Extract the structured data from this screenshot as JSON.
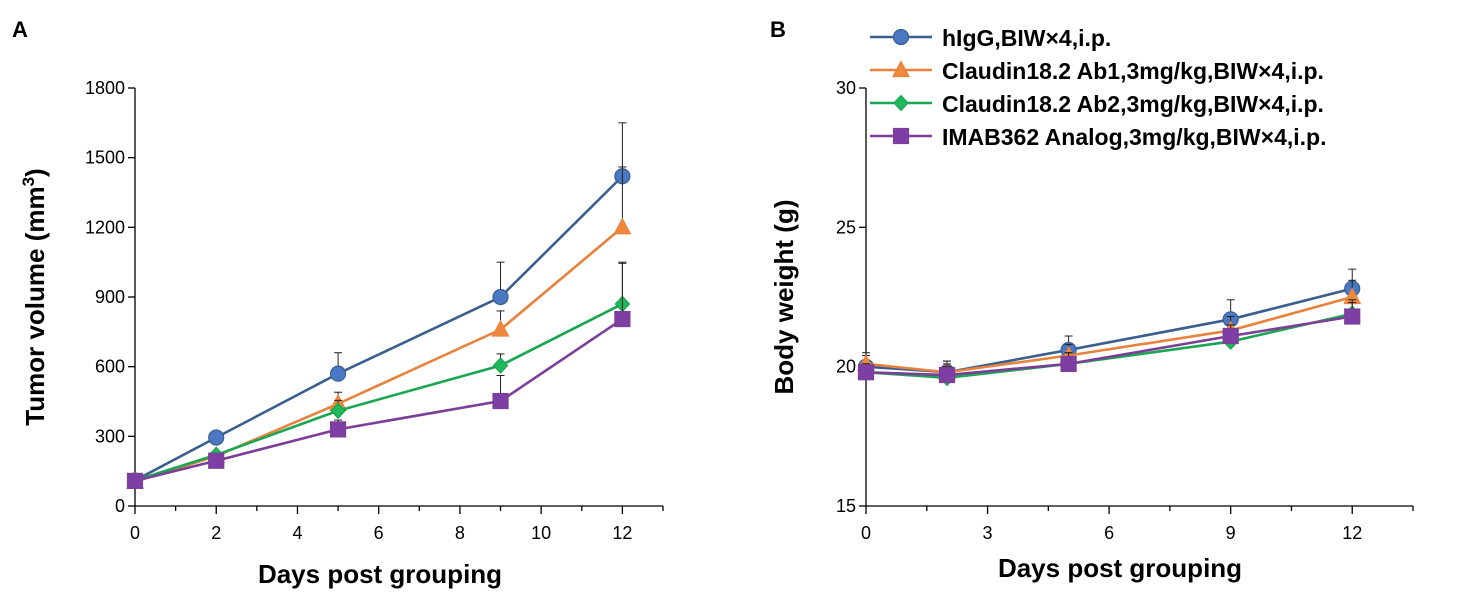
{
  "panels": [
    {
      "label": "A"
    },
    {
      "label": "B"
    }
  ],
  "legend": [
    {
      "name": "hIgG,BIW×4,i.p.",
      "color": "#3a5f8f",
      "fill": "#4a78c2",
      "marker": "circle"
    },
    {
      "name": "Claudin18.2 Ab1,3mg/kg,BIW×4,i.p.",
      "color": "#e8823c",
      "fill": "#ef8a3c",
      "marker": "triangle"
    },
    {
      "name": "Claudin18.2 Ab2,3mg/kg,BIW×4,i.p.",
      "color": "#1aa650",
      "fill": "#1fb85a",
      "marker": "diamond"
    },
    {
      "name": "IMAB362 Analog,3mg/kg,BIW×4,i.p.",
      "color": "#7b3f98",
      "fill": "#7d3fa3",
      "marker": "square"
    }
  ],
  "chart_data": [
    {
      "type": "line",
      "panel": "A",
      "xlabel": "Days post grouping",
      "ylabel": "Tumor volume (mm",
      "ylabel_sup": "3",
      "ylabel_close": ")",
      "xlim": [
        0,
        13
      ],
      "ylim": [
        0,
        1800
      ],
      "xticks": [
        0,
        2,
        4,
        6,
        8,
        10,
        12
      ],
      "xminor": [
        1,
        3,
        5,
        7,
        9,
        11,
        13
      ],
      "yticks": [
        0,
        300,
        600,
        900,
        1200,
        1500,
        1800
      ],
      "x": [
        0,
        2,
        5,
        9,
        12
      ],
      "series": [
        {
          "name": "hIgG,BIW×4,i.p.",
          "values": [
            110,
            295,
            570,
            900,
            1420
          ],
          "errors": [
            25,
            20,
            90,
            150,
            230
          ]
        },
        {
          "name": "Claudin18.2 Ab1,3mg/kg,BIW×4,i.p.",
          "values": [
            105,
            215,
            440,
            760,
            1200
          ],
          "errors": [
            20,
            15,
            50,
            80,
            260
          ]
        },
        {
          "name": "Claudin18.2 Ab2,3mg/kg,BIW×4,i.p.",
          "values": [
            110,
            220,
            410,
            605,
            870
          ],
          "errors": [
            20,
            15,
            45,
            50,
            180
          ]
        },
        {
          "name": "IMAB362 Analog,3mg/kg,BIW×4,i.p.",
          "values": [
            108,
            195,
            330,
            452,
            805
          ],
          "errors": [
            20,
            15,
            40,
            110,
            240
          ]
        }
      ]
    },
    {
      "type": "line",
      "panel": "B",
      "xlabel": "Days post grouping",
      "ylabel": "Body weight (g)",
      "xlim": [
        0,
        13.5
      ],
      "ylim": [
        15,
        30
      ],
      "xticks": [
        0,
        3,
        6,
        9,
        12
      ],
      "xminor": [
        1.5,
        4.5,
        7.5,
        10.5,
        13.5
      ],
      "yticks": [
        15,
        20,
        25,
        30
      ],
      "x": [
        0,
        2,
        5,
        9,
        12
      ],
      "series": [
        {
          "name": "hIgG,BIW×4,i.p.",
          "values": [
            20.0,
            19.8,
            20.6,
            21.7,
            22.8
          ],
          "errors": [
            0.4,
            0.4,
            0.5,
            0.7,
            0.7
          ]
        },
        {
          "name": "Claudin18.2 Ab1,3mg/kg,BIW×4,i.p.",
          "values": [
            20.1,
            19.8,
            20.4,
            21.3,
            22.5
          ],
          "errors": [
            0.4,
            0.4,
            0.4,
            0.5,
            0.6
          ]
        },
        {
          "name": "Claudin18.2 Ab2,3mg/kg,BIW×4,i.p.",
          "values": [
            19.8,
            19.6,
            20.1,
            20.9,
            21.9
          ],
          "errors": [
            0.3,
            0.4,
            0.4,
            0.4,
            0.5
          ]
        },
        {
          "name": "IMAB362 Analog,3mg/kg,BIW×4,i.p.",
          "values": [
            19.8,
            19.7,
            20.1,
            21.1,
            21.8
          ],
          "errors": [
            0.3,
            0.4,
            0.4,
            0.4,
            0.5
          ]
        }
      ]
    }
  ]
}
